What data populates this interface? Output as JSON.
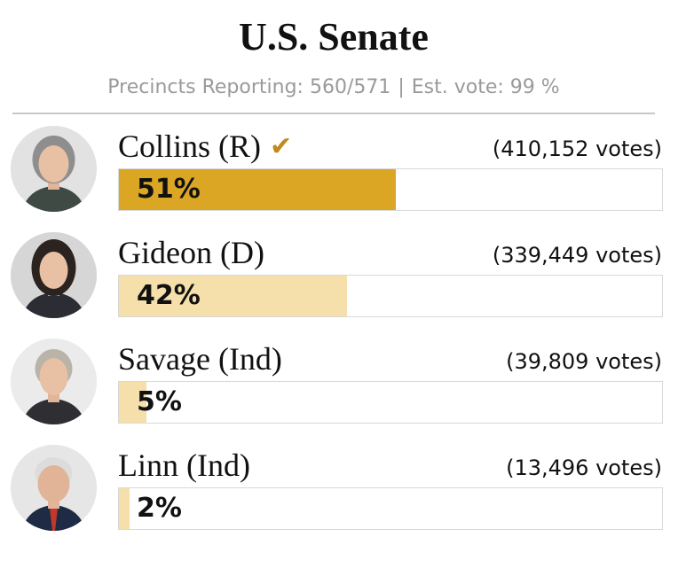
{
  "header": {
    "title": "U.S. Senate",
    "precincts": "Precincts Reporting: 560/571",
    "separator": "|",
    "est_vote": "Est. vote: 99 %"
  },
  "candidates": [
    {
      "name": "Collins (R)",
      "votes": "(410,152 votes)",
      "pct_label": "51%",
      "winner": true,
      "check": "✔",
      "color": "#dba623",
      "avatar_bg": "#e2e2e2",
      "hair": "#8e8e8e",
      "clothes": "#3f4a45"
    },
    {
      "name": "Gideon (D)",
      "votes": "(339,449 votes)",
      "pct_label": "42%",
      "winner": false,
      "check": "",
      "color": "#f5dfaa",
      "avatar_bg": "#d6d6d6",
      "hair": "#2b2320",
      "clothes": "#2c2c34"
    },
    {
      "name": "Savage (Ind)",
      "votes": "(39,809 votes)",
      "pct_label": "5%",
      "winner": false,
      "check": "",
      "color": "#f5dfaa",
      "avatar_bg": "#ebebeb",
      "hair": "#b9b3a8",
      "clothes": "#2e2e33"
    },
    {
      "name": "Linn (Ind)",
      "votes": "(13,496 votes)",
      "pct_label": "2%",
      "winner": false,
      "check": "",
      "color": "#f5dfaa",
      "avatar_bg": "#e6e6e6",
      "hair": "#dcdcdc",
      "clothes": "#1f2a44"
    }
  ],
  "chart_data": {
    "type": "bar",
    "title": "U.S. Senate",
    "categories": [
      "Collins (R)",
      "Gideon (D)",
      "Savage (Ind)",
      "Linn (Ind)"
    ],
    "values": [
      51,
      42,
      5,
      2
    ],
    "votes": [
      410152,
      339449,
      39809,
      13496
    ],
    "ylim": [
      0,
      100
    ],
    "winner": "Collins (R)"
  }
}
